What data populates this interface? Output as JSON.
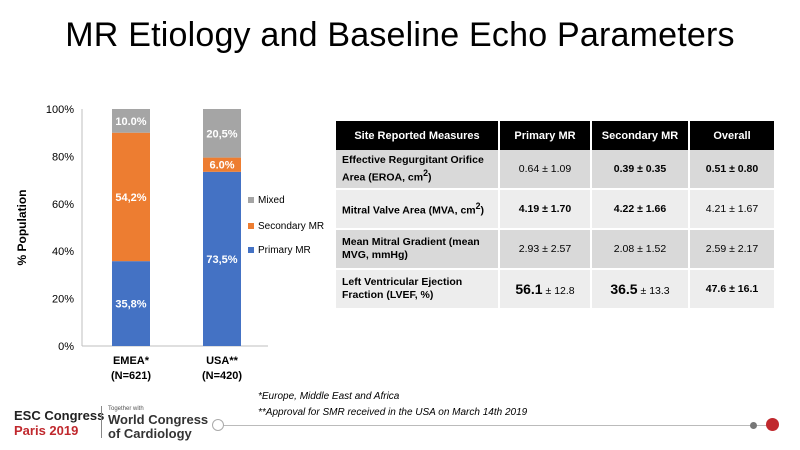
{
  "title": "MR Etiology and Baseline Echo Parameters",
  "chart_data": {
    "type": "bar",
    "stacked": true,
    "percent": true,
    "ylabel": "% Population",
    "ylim": [
      0,
      100
    ],
    "yticks": [
      0,
      20,
      40,
      60,
      80,
      100
    ],
    "ytick_labels": [
      "0%",
      "20%",
      "40%",
      "60%",
      "80%",
      "100%"
    ],
    "categories": [
      {
        "name": "EMEA*",
        "sub": "(N=621)"
      },
      {
        "name": "USA**",
        "sub": "(N=420)"
      }
    ],
    "series": [
      {
        "name": "Primary MR",
        "color": "#4472c4",
        "values": [
          35.8,
          73.5
        ],
        "labels": [
          "35,8%",
          "73,5%"
        ]
      },
      {
        "name": "Secondary MR",
        "color": "#ed7d31",
        "values": [
          54.2,
          6.0
        ],
        "labels": [
          "54,2%",
          "6.0%"
        ]
      },
      {
        "name": "Mixed",
        "color": "#a5a5a5",
        "values": [
          10.0,
          20.5
        ],
        "labels": [
          "10.0%",
          "20,5%"
        ]
      }
    ],
    "legend_position": "right",
    "grid": false
  },
  "table": {
    "headers": [
      "Site Reported Measures",
      "Primary MR",
      "Secondary MR",
      "Overall"
    ],
    "rows": [
      {
        "label_html": "Effective Regurgitant Orifice Area (EROA, cm<sup>2</sup>)",
        "cells": [
          {
            "text": "0.64 ± 1.09",
            "style": "small"
          },
          {
            "text": "0.39 ± 0.35",
            "style": "big"
          },
          {
            "main": "0.51",
            "rest": " ± 0.80",
            "style": "mixed"
          }
        ]
      },
      {
        "label_html": "Mitral Valve Area (MVA, cm<sup>2</sup>)",
        "cells": [
          {
            "text": "4.19 ± 1.70",
            "style": "big"
          },
          {
            "text": "4.22 ± 1.66",
            "style": "big"
          },
          {
            "text": "4.21 ± 1.67",
            "style": "small"
          }
        ]
      },
      {
        "label_html": "Mean Mitral Gradient (mean MVG, mmHg)",
        "cells": [
          {
            "text": "2.93 ± 2.57",
            "style": "small"
          },
          {
            "text": "2.08 ± 1.52",
            "style": "small"
          },
          {
            "text": "2.59 ± 2.17",
            "style": "small"
          }
        ]
      },
      {
        "label_html": "Left Ventricular Ejection Fraction (LVEF, %)",
        "cells": [
          {
            "main": "56.1",
            "rest": " ± 12.8",
            "style": "mixed-big"
          },
          {
            "main": "36.5",
            "rest": " ± 13.3",
            "style": "mixed-big"
          },
          {
            "text": "47.6 ± 16.1",
            "style": "bold"
          }
        ]
      }
    ]
  },
  "footnotes": [
    "*Europe, Middle East and Africa",
    "**Approval  for SMR received in the USA on March 14th  2019"
  ],
  "footer": {
    "esc_line1": "ESC Congress",
    "esc_line2": "Paris 2019",
    "together": "Together with",
    "wc_line1": "World Congress",
    "wc_line2": "of Cardiology"
  }
}
